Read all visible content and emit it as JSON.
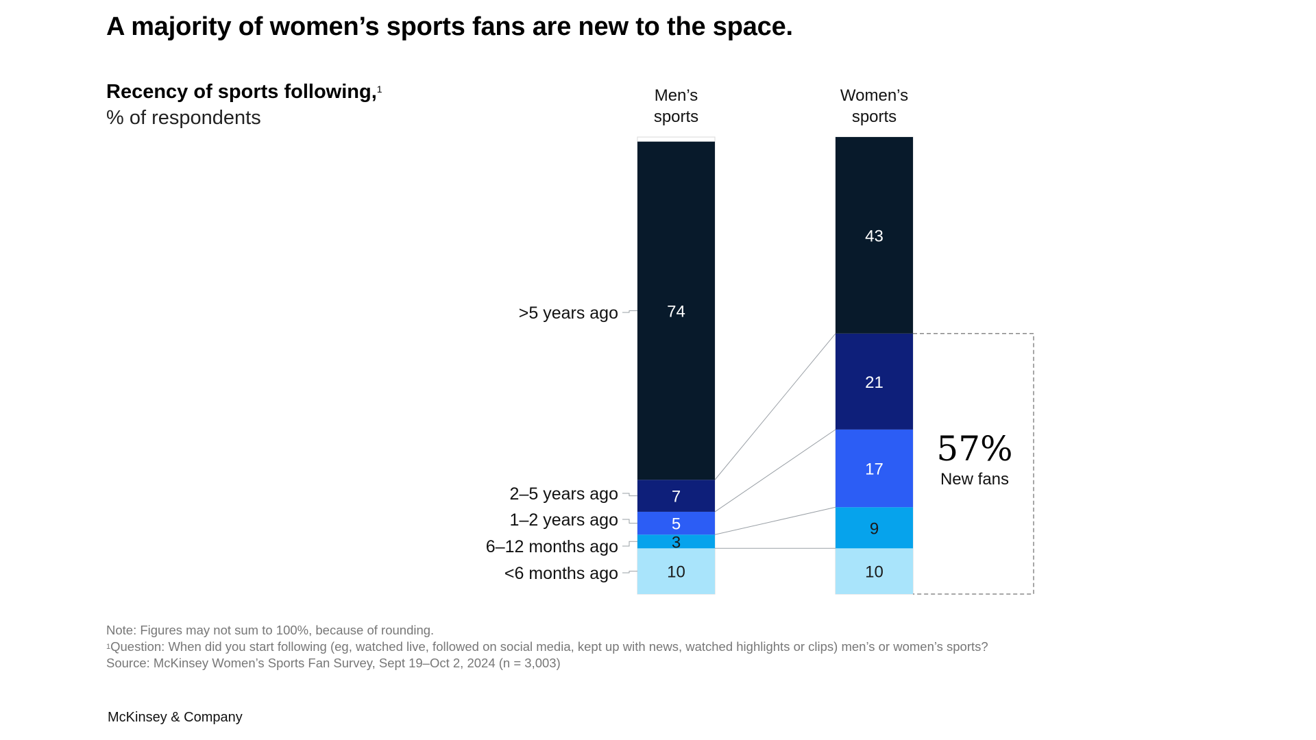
{
  "title": "A majority of women’s sports fans are new to the space.",
  "subtitle": "Recency of sports following,",
  "subtitle_footnote": "1",
  "unit": "% of respondents",
  "notes": {
    "note": "Note: Figures may not sum to 100%, because of rounding.",
    "footnote_marker": "1",
    "question": "Question: When did you start following (eg, watched live, followed on social media, kept up with news, watched highlights or clips) men’s or women’s sports?",
    "source": "Source: McKinsey Women’s Sports Fan Survey, Sept 19–Oct 2, 2024 (n = 3,003)"
  },
  "brand": "McKinsey & Company",
  "colors": {
    "gt5": "#081a2b",
    "y2_5": "#0e1f7a",
    "y1_2": "#2c5df5",
    "m6_12": "#06a3ec",
    "lt6": "#a9e4fb"
  },
  "chart_data": {
    "type": "bar",
    "stacked": true,
    "categories": [
      "Men’s sports",
      "Women’s sports"
    ],
    "category_lines": [
      [
        "Men’s",
        "sports"
      ],
      [
        "Women’s",
        "sports"
      ]
    ],
    "series": [
      {
        "name": "<6 months ago",
        "values": [
          10,
          10
        ],
        "color_key": "lt6"
      },
      {
        "name": "6–12 months ago",
        "values": [
          3,
          9
        ],
        "color_key": "m6_12"
      },
      {
        "name": "1–2 years ago",
        "values": [
          5,
          17
        ],
        "color_key": "y1_2"
      },
      {
        "name": "2–5 years ago",
        "values": [
          7,
          21
        ],
        "color_key": "y2_5"
      },
      {
        "name": ">5 years ago",
        "values": [
          74,
          43
        ],
        "color_key": "gt5"
      }
    ],
    "callout": {
      "value": "57%",
      "label": "New fans"
    },
    "ylim": [
      0,
      100
    ]
  }
}
